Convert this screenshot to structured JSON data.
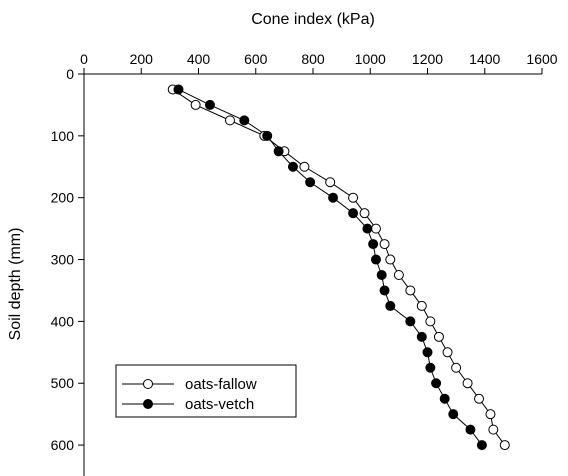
{
  "chart_data": {
    "type": "line",
    "title": "",
    "xlabel": "Cone index (kPa)",
    "ylabel": "Soil depth (mm)",
    "x_axis_position": "top",
    "y_axis_inverted": true,
    "xlim": [
      0,
      1600
    ],
    "ylim": [
      0,
      650
    ],
    "x_ticks": [
      0,
      200,
      400,
      600,
      800,
      1000,
      1200,
      1400,
      1600
    ],
    "y_ticks": [
      0,
      100,
      200,
      300,
      400,
      500,
      600
    ],
    "grid": false,
    "legend_position": "bottom-left",
    "series": [
      {
        "name": "oats-fallow",
        "marker": "open-circle",
        "color": "#000000",
        "points": [
          {
            "x": 310,
            "y": 25
          },
          {
            "x": 390,
            "y": 50
          },
          {
            "x": 510,
            "y": 75
          },
          {
            "x": 630,
            "y": 100
          },
          {
            "x": 700,
            "y": 125
          },
          {
            "x": 770,
            "y": 150
          },
          {
            "x": 860,
            "y": 175
          },
          {
            "x": 940,
            "y": 200
          },
          {
            "x": 980,
            "y": 225
          },
          {
            "x": 1020,
            "y": 250
          },
          {
            "x": 1050,
            "y": 275
          },
          {
            "x": 1070,
            "y": 300
          },
          {
            "x": 1100,
            "y": 325
          },
          {
            "x": 1140,
            "y": 350
          },
          {
            "x": 1180,
            "y": 375
          },
          {
            "x": 1210,
            "y": 400
          },
          {
            "x": 1240,
            "y": 425
          },
          {
            "x": 1270,
            "y": 450
          },
          {
            "x": 1300,
            "y": 475
          },
          {
            "x": 1340,
            "y": 500
          },
          {
            "x": 1380,
            "y": 525
          },
          {
            "x": 1420,
            "y": 550
          },
          {
            "x": 1430,
            "y": 575
          },
          {
            "x": 1470,
            "y": 600
          }
        ]
      },
      {
        "name": "oats-vetch",
        "marker": "filled-circle",
        "color": "#000000",
        "points": [
          {
            "x": 330,
            "y": 25
          },
          {
            "x": 440,
            "y": 50
          },
          {
            "x": 560,
            "y": 75
          },
          {
            "x": 640,
            "y": 100
          },
          {
            "x": 680,
            "y": 125
          },
          {
            "x": 730,
            "y": 150
          },
          {
            "x": 790,
            "y": 175
          },
          {
            "x": 870,
            "y": 200
          },
          {
            "x": 940,
            "y": 225
          },
          {
            "x": 990,
            "y": 250
          },
          {
            "x": 1010,
            "y": 275
          },
          {
            "x": 1020,
            "y": 300
          },
          {
            "x": 1040,
            "y": 325
          },
          {
            "x": 1050,
            "y": 350
          },
          {
            "x": 1070,
            "y": 375
          },
          {
            "x": 1140,
            "y": 400
          },
          {
            "x": 1180,
            "y": 425
          },
          {
            "x": 1200,
            "y": 450
          },
          {
            "x": 1210,
            "y": 475
          },
          {
            "x": 1230,
            "y": 500
          },
          {
            "x": 1260,
            "y": 525
          },
          {
            "x": 1290,
            "y": 550
          },
          {
            "x": 1350,
            "y": 575
          },
          {
            "x": 1390,
            "y": 600
          }
        ]
      }
    ]
  }
}
